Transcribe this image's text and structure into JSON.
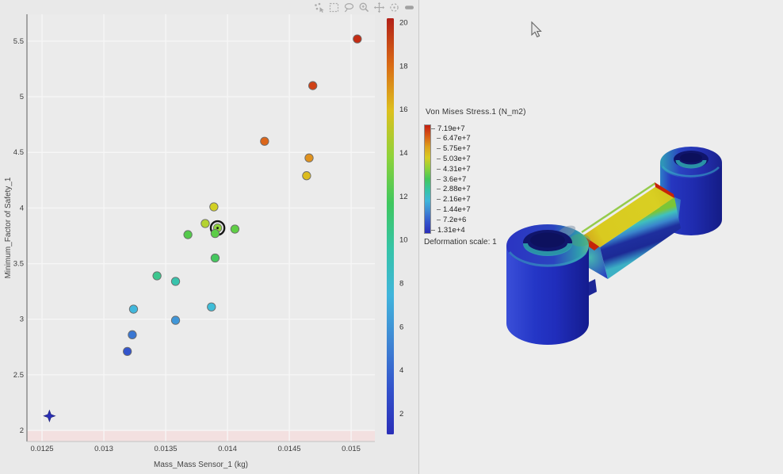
{
  "toolbar": {
    "icons": [
      "select-points-icon",
      "box-select-icon",
      "lasso-select-icon",
      "zoom-icon",
      "pan-icon",
      "reset-view-icon",
      "collapse-icon"
    ]
  },
  "chart_data": {
    "type": "scatter",
    "title": "",
    "xlabel": "Mass_Mass Sensor_1 (kg)",
    "ylabel": "Minimum_Factor of Safety_1",
    "xticks": [
      "0.0125",
      "0.013",
      "0.0135",
      "0.014",
      "0.0145",
      "0.015"
    ],
    "yticks": [
      "2",
      "2.5",
      "3",
      "3.5",
      "4",
      "4.5",
      "5",
      "5.5"
    ],
    "xlim": [
      0.012378,
      0.015192
    ],
    "ylim": [
      1.9,
      5.742
    ],
    "grid": true,
    "constraint_band": {
      "below_y": 2.0,
      "fill": "#f3e0e0",
      "edge": "#d9b0b0"
    },
    "colorbar": {
      "min": 1.05,
      "max": 20.2,
      "ticks": [
        "2",
        "4",
        "6",
        "8",
        "10",
        "12",
        "14",
        "16",
        "18",
        "20"
      ],
      "gradient_top_to_bottom": [
        "#b22018",
        "#d96a15",
        "#ddc01e",
        "#8ed23a",
        "#3fc75e",
        "#35c4a8",
        "#40b4dc",
        "#3f86d4",
        "#3353cc",
        "#2a2eb8"
      ]
    },
    "points": [
      {
        "x": 0.01505,
        "y": 5.52,
        "c": "#c42d14"
      },
      {
        "x": 0.01469,
        "y": 5.1,
        "c": "#cf4116"
      },
      {
        "x": 0.0143,
        "y": 4.6,
        "c": "#dc661a"
      },
      {
        "x": 0.01466,
        "y": 4.45,
        "c": "#e0921e"
      },
      {
        "x": 0.01464,
        "y": 4.29,
        "c": "#dcbc1e"
      },
      {
        "x": 0.01389,
        "y": 4.01,
        "c": "#d2d023"
      },
      {
        "x": 0.01382,
        "y": 3.86,
        "c": "#b4d331"
      },
      {
        "x": 0.01392,
        "y": 3.82,
        "c": "#8ed23a",
        "selected": true
      },
      {
        "x": 0.0139,
        "y": 3.77,
        "c": "#5ccd47"
      },
      {
        "x": 0.01406,
        "y": 3.81,
        "c": "#5fce45"
      },
      {
        "x": 0.01368,
        "y": 3.76,
        "c": "#54ca4b"
      },
      {
        "x": 0.0139,
        "y": 3.55,
        "c": "#45c75e"
      },
      {
        "x": 0.01343,
        "y": 3.39,
        "c": "#3cc78e"
      },
      {
        "x": 0.01358,
        "y": 3.34,
        "c": "#38c3ac"
      },
      {
        "x": 0.01387,
        "y": 3.11,
        "c": "#3fbdd8"
      },
      {
        "x": 0.01324,
        "y": 3.09,
        "c": "#41b7dc"
      },
      {
        "x": 0.01358,
        "y": 2.99,
        "c": "#3f96d8"
      },
      {
        "x": 0.01323,
        "y": 2.86,
        "c": "#3a77d2"
      },
      {
        "x": 0.01319,
        "y": 2.71,
        "c": "#3355cc"
      },
      {
        "x": 0.01256,
        "y": 2.13,
        "c": "#2a2eb8",
        "marker": "star"
      }
    ]
  },
  "fea": {
    "legend_title": "Von Mises Stress.1 (N_m2)",
    "legend_values": [
      "7.19e+7",
      "6.47e+7",
      "5.75e+7",
      "5.03e+7",
      "4.31e+7",
      "3.6e+7",
      "2.88e+7",
      "2.16e+7",
      "1.44e+7",
      "7.2e+6",
      "1.31e+4"
    ],
    "legend_colors_top_to_bottom": [
      "#c41e12",
      "#d85a14",
      "#dda01c",
      "#d8cc22",
      "#8ed23a",
      "#44c75c",
      "#36c4a5",
      "#3fb6da",
      "#3f86d4",
      "#3353cc",
      "#2a2db8"
    ],
    "deformation_label": "Deformation scale: 1"
  }
}
